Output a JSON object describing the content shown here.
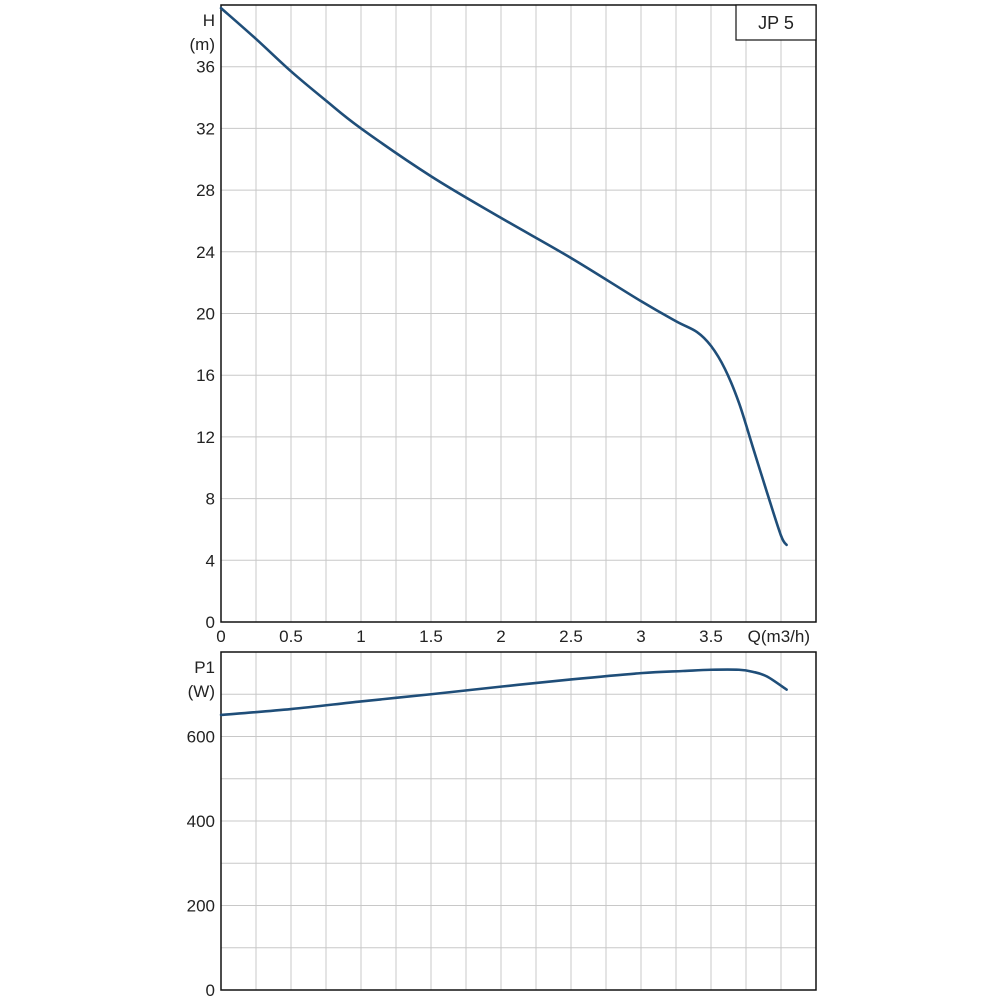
{
  "chart_data": [
    {
      "type": "line",
      "title": "",
      "legend": "JP 5",
      "legend_position": "top-right",
      "ylabel_line1": "H",
      "ylabel_line2": "(m)",
      "xlabel": "Q(m3/h)",
      "xlim": [
        0,
        4.25
      ],
      "ylim": [
        0,
        40
      ],
      "x_ticks": [
        0,
        0.5,
        1,
        1.5,
        2,
        2.5,
        3,
        3.5
      ],
      "x_tick_labels": [
        "0",
        "0.5",
        "1",
        "1.5",
        "2",
        "2.5",
        "3",
        "3.5"
      ],
      "y_ticks": [
        0,
        4,
        8,
        12,
        16,
        20,
        24,
        28,
        32,
        36
      ],
      "y_tick_labels": [
        "0",
        "4",
        "8",
        "12",
        "16",
        "20",
        "24",
        "28",
        "32",
        "36"
      ],
      "grid": true,
      "series": [
        {
          "color": "#1f4e79",
          "x": [
            0,
            0.25,
            0.5,
            0.75,
            1.0,
            1.5,
            2.0,
            2.5,
            3.0,
            3.25,
            3.4,
            3.5,
            3.6,
            3.7,
            3.8,
            3.9,
            4.0,
            4.04
          ],
          "y": [
            39.8,
            37.8,
            35.7,
            33.8,
            32.0,
            28.9,
            26.2,
            23.6,
            20.8,
            19.5,
            18.8,
            17.9,
            16.4,
            14.2,
            11.3,
            8.4,
            5.6,
            5.0
          ]
        }
      ]
    },
    {
      "type": "line",
      "title": "",
      "ylabel_line1": "P1",
      "ylabel_line2": "(W)",
      "xlim": [
        0,
        4.25
      ],
      "ylim": [
        0,
        800
      ],
      "x_ticks": [
        0,
        0.5,
        1,
        1.5,
        2,
        2.5,
        3,
        3.5
      ],
      "y_ticks": [
        0,
        200,
        400,
        600
      ],
      "y_tick_labels": [
        "0",
        "200",
        "400",
        "600"
      ],
      "y_grid_step": 100,
      "grid": true,
      "series": [
        {
          "color": "#1f4e79",
          "x": [
            0,
            0.5,
            1.0,
            1.5,
            2.0,
            2.5,
            3.0,
            3.3,
            3.5,
            3.7,
            3.8,
            3.9,
            4.04
          ],
          "y": [
            651,
            665,
            683,
            700,
            718,
            735,
            750,
            755,
            758,
            758,
            753,
            742,
            711
          ]
        }
      ]
    }
  ]
}
